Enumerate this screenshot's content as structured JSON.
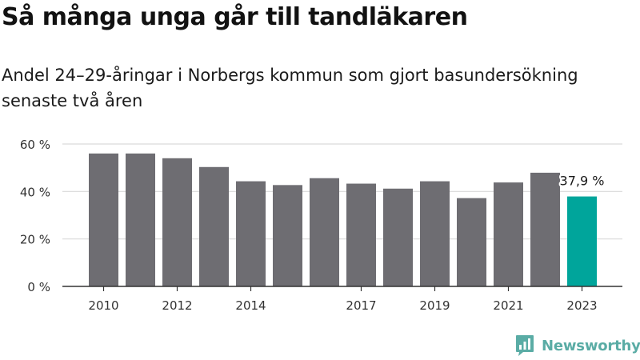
{
  "title": "Så många unga går till tandläkaren",
  "subtitle": "Andel 24–29-åringar i Norbergs kommun som gjort basundersökning senaste två åren",
  "brand": {
    "name": "Newsworthy",
    "icon": "newsworthy-logo-icon",
    "color": "#5aaca5"
  },
  "chart_data": {
    "type": "bar",
    "categories": [
      "2010",
      "2011",
      "2012",
      "2013",
      "2014",
      "2015",
      "2016",
      "2017",
      "2018",
      "2019",
      "2020",
      "2021",
      "2022",
      "2023"
    ],
    "values": [
      56,
      56,
      54,
      50.3,
      44.3,
      42.7,
      45.6,
      43.3,
      41.2,
      44.3,
      37.2,
      43.8,
      47.9,
      37.9
    ],
    "ylim": [
      0,
      60
    ],
    "yticks": [
      0,
      20,
      40,
      60
    ],
    "ytick_labels": [
      "0 %",
      "20 %",
      "40 %",
      "60 %"
    ],
    "xtick_labels": [
      "2010",
      "2012",
      "2014",
      "2017",
      "2019",
      "2021",
      "2023"
    ],
    "annotation": {
      "category": "2023",
      "label": "37,9 %"
    },
    "grid": true,
    "colors": {
      "default": "#6e6d72",
      "highlight": "#00a59b",
      "grid": "#d9d9d9",
      "axis": "#333333"
    }
  }
}
